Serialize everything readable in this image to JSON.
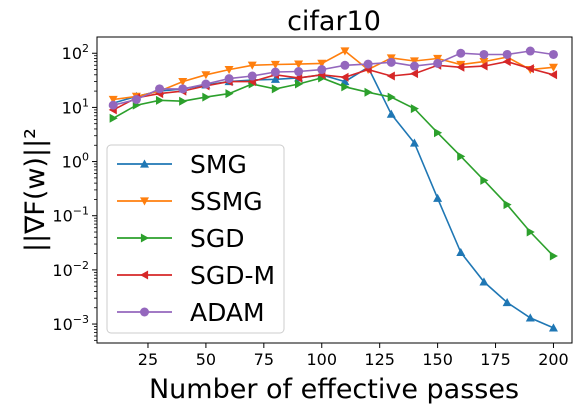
{
  "chart_data": {
    "type": "line",
    "title": "cifar10",
    "xlabel": "Number of effective passes",
    "ylabel": "||∇F(w)||²",
    "xlim": [
      3,
      208
    ],
    "ylim_log10": [
      -3.35,
      2.3
    ],
    "yscale": "log",
    "grid": false,
    "legend_position": "lower-left",
    "x": [
      10,
      20,
      30,
      40,
      50,
      60,
      70,
      80,
      90,
      100,
      110,
      120,
      130,
      140,
      150,
      160,
      170,
      180,
      190,
      200
    ],
    "x_ticks": [
      25,
      50,
      75,
      100,
      125,
      150,
      175,
      200
    ],
    "y_ticks": [
      {
        "exp": -3,
        "label": "10",
        "sup": "−3"
      },
      {
        "exp": -2,
        "label": "10",
        "sup": "−2"
      },
      {
        "exp": -1,
        "label": "10",
        "sup": "−1"
      },
      {
        "exp": 0,
        "label": "10",
        "sup": "0"
      },
      {
        "exp": 1,
        "label": "10",
        "sup": "1"
      },
      {
        "exp": 2,
        "label": "10",
        "sup": "2"
      }
    ],
    "series": [
      {
        "name": "SMG",
        "color": "#1f77b4",
        "marker": "triangle-up",
        "values": [
          12,
          16,
          20,
          22,
          26,
          30,
          32,
          33,
          35,
          40,
          30,
          55,
          7.5,
          2.2,
          0.21,
          0.021,
          0.006,
          0.0025,
          0.0013,
          0.00085
        ]
      },
      {
        "name": "SSMG",
        "color": "#ff7f0e",
        "marker": "triangle-down",
        "values": [
          14,
          16,
          20,
          30,
          40,
          50,
          60,
          62,
          63,
          65,
          110,
          50,
          82,
          72,
          80,
          62,
          70,
          85,
          50,
          55
        ]
      },
      {
        "name": "SGD",
        "color": "#2ca02c",
        "marker": "triangle-right",
        "values": [
          6.3,
          11,
          13.5,
          13,
          15.5,
          18,
          27,
          22,
          27,
          35,
          24,
          19,
          15.5,
          9.5,
          3.4,
          1.25,
          0.45,
          0.16,
          0.05,
          0.018
        ]
      },
      {
        "name": "SGD-M",
        "color": "#d62728",
        "marker": "triangle-left",
        "values": [
          9,
          15,
          18,
          20,
          25,
          30,
          30,
          40,
          35,
          40,
          36,
          50,
          38,
          42,
          60,
          55,
          58,
          70,
          52,
          40
        ]
      },
      {
        "name": "ADAM",
        "color": "#9467bd",
        "marker": "circle",
        "values": [
          11,
          14,
          22,
          22,
          27,
          34,
          38,
          45,
          46,
          50,
          60,
          63,
          68,
          58,
          65,
          100,
          95,
          95,
          110,
          95
        ]
      }
    ]
  }
}
